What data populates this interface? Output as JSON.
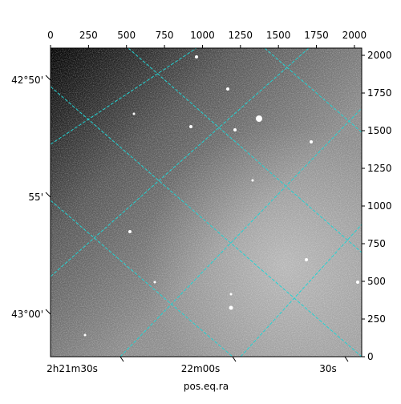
{
  "chart_data": {
    "type": "image",
    "xlabel": "pos.eq.ra",
    "xlim": [
      0,
      2048
    ],
    "ylim": [
      0,
      2048
    ],
    "xticks": [
      0,
      250,
      500,
      750,
      1000,
      1250,
      1500,
      1750,
      2000
    ],
    "yticks": [
      0,
      250,
      500,
      750,
      1000,
      1250,
      1500,
      1750,
      2000
    ],
    "dec_labels": [
      "42°50'",
      "55'",
      "43°00'"
    ],
    "ra_labels": [
      "2h21m30s",
      "22m00s",
      "30s"
    ]
  }
}
